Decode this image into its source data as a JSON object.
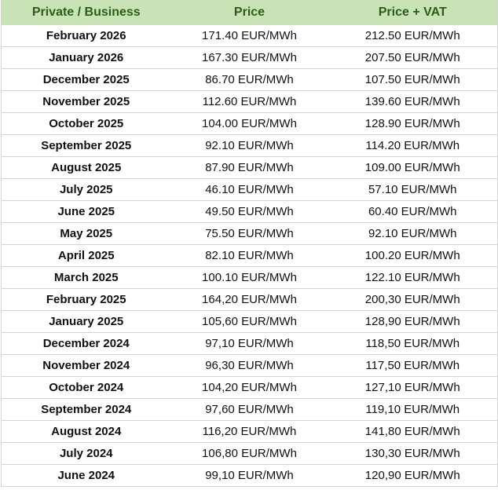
{
  "table": {
    "header": [
      "Private / Business",
      "Price",
      "Price + VAT"
    ],
    "rows": [
      [
        "February 2026",
        "171.40 EUR/MWh",
        "212.50 EUR/MWh"
      ],
      [
        "January 2026",
        "167.30 EUR/MWh",
        "207.50 EUR/MWh"
      ],
      [
        "December 2025",
        "86.70 EUR/MWh",
        "107.50 EUR/MWh"
      ],
      [
        "November 2025",
        "112.60 EUR/MWh",
        "139.60 EUR/MWh"
      ],
      [
        "October 2025",
        "104.00 EUR/MWh",
        "128.90 EUR/MWh"
      ],
      [
        "September 2025",
        "92.10 EUR/MWh",
        "114.20 EUR/MWh"
      ],
      [
        "August 2025",
        "87.90 EUR/MWh",
        "109.00 EUR/MWh"
      ],
      [
        "July 2025",
        "46.10 EUR/MWh",
        "57.10 EUR/MWh"
      ],
      [
        "June 2025",
        "49.50 EUR/MWh",
        "60.40 EUR/MWh"
      ],
      [
        "May 2025",
        "75.50 EUR/MWh",
        "92.10 EUR/MWh"
      ],
      [
        "April 2025",
        "82.10 EUR/MWh",
        "100.20 EUR/MWh"
      ],
      [
        "March 2025",
        "100.10 EUR/MWh",
        "122.10 EUR/MWh"
      ],
      [
        "February 2025",
        "164,20 EUR/MWh",
        "200,30 EUR/MWh"
      ],
      [
        "January 2025",
        "105,60 EUR/MWh",
        "128,90 EUR/MWh"
      ],
      [
        "December 2024",
        "97,10 EUR/MWh",
        "118,50 EUR/MWh"
      ],
      [
        "November 2024",
        "96,30 EUR/MWh",
        "117,50 EUR/MWh"
      ],
      [
        "October 2024",
        "104,20 EUR/MWh",
        "127,10 EUR/MWh"
      ],
      [
        "September 2024",
        "97,60 EUR/MWh",
        "119,10 EUR/MWh"
      ],
      [
        "August 2024",
        "116,20 EUR/MWh",
        "141,80 EUR/MWh"
      ],
      [
        "July 2024",
        "106,80 EUR/MWh",
        "130,30 EUR/MWh"
      ],
      [
        "June 2024",
        "99,10 EUR/MWh",
        "120,90 EUR/MWh"
      ]
    ]
  }
}
